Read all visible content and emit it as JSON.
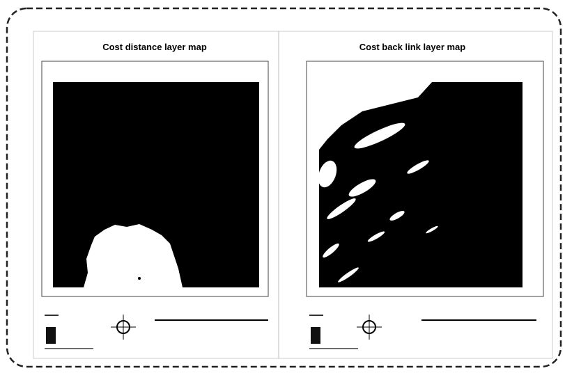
{
  "panels": [
    {
      "title": "Cost distance layer map"
    },
    {
      "title": "Cost back link layer map"
    }
  ]
}
